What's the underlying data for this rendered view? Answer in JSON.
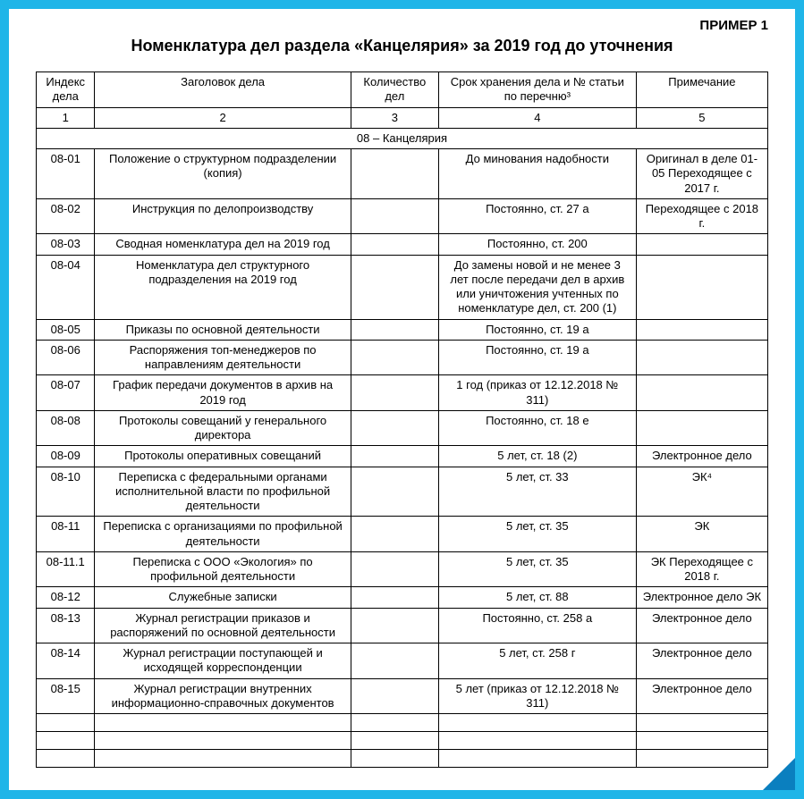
{
  "frame_color": "#1fb5e8",
  "corner_color": "#0a7fbf",
  "example_label": "ПРИМЕР 1",
  "title": "Номенклатура дел раздела «Канцелярия» за 2019 год до уточнения",
  "table": {
    "columns": [
      {
        "header": "Индекс дела",
        "num": "1"
      },
      {
        "header": "Заголовок дела",
        "num": "2"
      },
      {
        "header": "Количество дел",
        "num": "3"
      },
      {
        "header": "Срок хранения дела и № статьи по перечню³",
        "num": "4"
      },
      {
        "header": "Примечание",
        "num": "5"
      }
    ],
    "section_label": "08 – Канцелярия",
    "rows": [
      {
        "index": "08-01",
        "title": "Положение о структурном подразделении (копия)",
        "qty": "",
        "storage": "До минования надобности",
        "note": "Оригинал в деле 01-05 Переходящее с 2017 г."
      },
      {
        "index": "08-02",
        "title": "Инструкция по делопроизводству",
        "qty": "",
        "storage": "Постоянно, ст. 27 а",
        "note": "Переходящее с 2018 г."
      },
      {
        "index": "08-03",
        "title": "Сводная номенклатура дел на 2019 год",
        "qty": "",
        "storage": "Постоянно, ст. 200",
        "note": ""
      },
      {
        "index": "08-04",
        "title": "Номенклатура дел структурного подразделения на 2019 год",
        "qty": "",
        "storage": "До замены новой и не менее 3 лет после передачи дел в архив или уничтожения учтенных по номенклатуре дел, ст. 200 (1)",
        "note": ""
      },
      {
        "index": "08-05",
        "title": "Приказы по основной деятельности",
        "qty": "",
        "storage": "Постоянно, ст. 19 а",
        "note": ""
      },
      {
        "index": "08-06",
        "title": "Распоряжения топ-менеджеров по направлениям деятельности",
        "qty": "",
        "storage": "Постоянно, ст. 19 а",
        "note": ""
      },
      {
        "index": "08-07",
        "title": "График передачи документов в архив на 2019 год",
        "qty": "",
        "storage": "1 год (приказ от 12.12.2018 № 311)",
        "note": ""
      },
      {
        "index": "08-08",
        "title": "Протоколы совещаний у генерального директора",
        "qty": "",
        "storage": "Постоянно, ст. 18 е",
        "note": ""
      },
      {
        "index": "08-09",
        "title": "Протоколы оперативных совещаний",
        "qty": "",
        "storage": "5 лет, ст. 18 (2)",
        "note": "Электронное дело"
      },
      {
        "index": "08-10",
        "title": "Переписка с федеральными органами исполнительной власти по профильной деятельности",
        "qty": "",
        "storage": "5 лет, ст. 33",
        "note": "ЭК⁴"
      },
      {
        "index": "08-11",
        "title": "Переписка с организациями по профильной деятельности",
        "qty": "",
        "storage": "5 лет, ст. 35",
        "note": "ЭК"
      },
      {
        "index": "08-11.1",
        "title": "Переписка с ООО «Экология» по профильной деятельности",
        "qty": "",
        "storage": "5 лет, ст. 35",
        "note": "ЭК Переходящее с 2018 г."
      },
      {
        "index": "08-12",
        "title": "Служебные записки",
        "qty": "",
        "storage": "5 лет, ст. 88",
        "note": "Электронное дело ЭК"
      },
      {
        "index": "08-13",
        "title": "Журнал регистрации приказов и распоряжений по основной деятельности",
        "qty": "",
        "storage": "Постоянно, ст. 258 а",
        "note": "Электронное дело"
      },
      {
        "index": "08-14",
        "title": "Журнал регистрации поступающей и исходящей корреспонденции",
        "qty": "",
        "storage": "5 лет, ст. 258 г",
        "note": "Электронное дело"
      },
      {
        "index": "08-15",
        "title": "Журнал регистрации внутренних информационно-справочных документов",
        "qty": "",
        "storage": "5 лет (приказ от 12.12.2018 № 311)",
        "note": "Электронное дело"
      }
    ],
    "empty_rows": 3
  }
}
